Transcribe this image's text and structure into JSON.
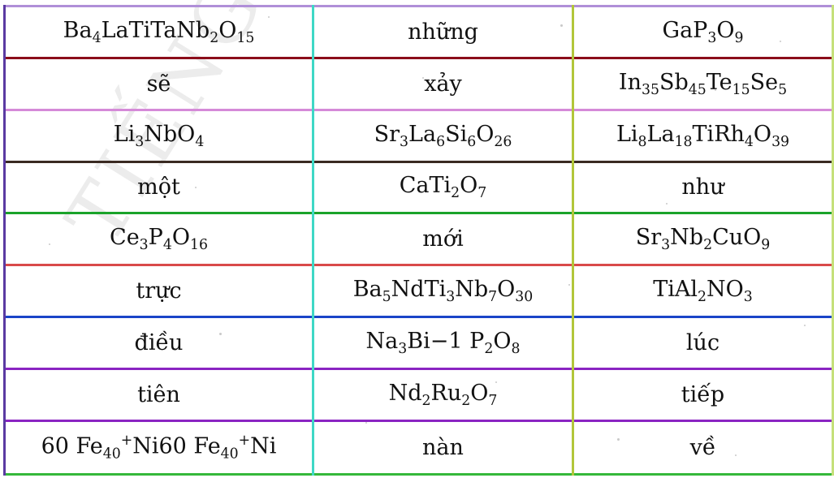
{
  "rows": [
    {
      "cells": [
        {
          "parts": [
            {
              "t": "Ba"
            },
            {
              "sub": "4"
            },
            {
              "t": "LaTiTaNb"
            },
            {
              "sub": "2"
            },
            {
              "t": "O"
            },
            {
              "sub": "15"
            }
          ]
        },
        {
          "parts": [
            {
              "t": "những"
            }
          ]
        },
        {
          "parts": [
            {
              "t": "GaP"
            },
            {
              "sub": "3"
            },
            {
              "t": "O"
            },
            {
              "sub": "9"
            }
          ]
        }
      ]
    },
    {
      "cells": [
        {
          "parts": [
            {
              "t": "sẽ"
            }
          ]
        },
        {
          "parts": [
            {
              "t": "xảy"
            }
          ]
        },
        {
          "parts": [
            {
              "t": "In"
            },
            {
              "sub": "35"
            },
            {
              "t": "Sb"
            },
            {
              "sub": "45"
            },
            {
              "t": "Te"
            },
            {
              "sub": "15"
            },
            {
              "t": "Se"
            },
            {
              "sub": "5"
            }
          ]
        }
      ]
    },
    {
      "cells": [
        {
          "parts": [
            {
              "t": "Li"
            },
            {
              "sub": "3"
            },
            {
              "t": "NbO"
            },
            {
              "sub": "4"
            }
          ]
        },
        {
          "parts": [
            {
              "t": "Sr"
            },
            {
              "sub": "3"
            },
            {
              "t": "La"
            },
            {
              "sub": "6"
            },
            {
              "t": "Si"
            },
            {
              "sub": "6"
            },
            {
              "t": "O"
            },
            {
              "sub": "26"
            }
          ]
        },
        {
          "parts": [
            {
              "t": "Li"
            },
            {
              "sub": "8"
            },
            {
              "t": "La"
            },
            {
              "sub": "18"
            },
            {
              "t": "TiRh"
            },
            {
              "sub": "4"
            },
            {
              "t": "O"
            },
            {
              "sub": "39"
            }
          ]
        }
      ]
    },
    {
      "cells": [
        {
          "parts": [
            {
              "t": "một"
            }
          ]
        },
        {
          "parts": [
            {
              "t": "CaTi"
            },
            {
              "sub": "2"
            },
            {
              "t": "O"
            },
            {
              "sub": "7"
            }
          ]
        },
        {
          "parts": [
            {
              "t": "như"
            }
          ]
        }
      ]
    },
    {
      "cells": [
        {
          "parts": [
            {
              "t": "Ce"
            },
            {
              "sub": "3"
            },
            {
              "t": "P"
            },
            {
              "sub": "4"
            },
            {
              "t": "O"
            },
            {
              "sub": "16"
            }
          ]
        },
        {
          "parts": [
            {
              "t": "mới"
            }
          ]
        },
        {
          "parts": [
            {
              "t": "Sr"
            },
            {
              "sub": "3"
            },
            {
              "t": "Nb"
            },
            {
              "sub": "2"
            },
            {
              "t": "CuO"
            },
            {
              "sub": "9"
            }
          ]
        }
      ]
    },
    {
      "cells": [
        {
          "parts": [
            {
              "t": "trực"
            }
          ]
        },
        {
          "parts": [
            {
              "t": "Ba"
            },
            {
              "sub": "5"
            },
            {
              "t": "NdTi"
            },
            {
              "sub": "3"
            },
            {
              "t": "Nb"
            },
            {
              "sub": "7"
            },
            {
              "t": "O"
            },
            {
              "sub": "30"
            }
          ]
        },
        {
          "parts": [
            {
              "t": "TiAl"
            },
            {
              "sub": "2"
            },
            {
              "t": "NO"
            },
            {
              "sub": "3"
            }
          ]
        }
      ]
    },
    {
      "cells": [
        {
          "parts": [
            {
              "t": "điều"
            }
          ]
        },
        {
          "parts": [
            {
              "t": "Na"
            },
            {
              "sub": "3"
            },
            {
              "t": "Bi−1 P"
            },
            {
              "sub": "2"
            },
            {
              "t": "O"
            },
            {
              "sub": "8"
            }
          ]
        },
        {
          "parts": [
            {
              "t": "lúc"
            }
          ]
        }
      ]
    },
    {
      "cells": [
        {
          "parts": [
            {
              "t": "tiên"
            }
          ]
        },
        {
          "parts": [
            {
              "t": "Nd"
            },
            {
              "sub": "2"
            },
            {
              "t": "Ru"
            },
            {
              "sub": "2"
            },
            {
              "t": "O"
            },
            {
              "sub": "7"
            }
          ]
        },
        {
          "parts": [
            {
              "t": "tiếp"
            }
          ]
        }
      ]
    },
    {
      "cells": [
        {
          "parts": [
            {
              "t": "60 Fe"
            },
            {
              "sub": "40"
            },
            {
              "sup": "+"
            },
            {
              "t": "Ni60 Fe"
            },
            {
              "sub": "40"
            },
            {
              "sup": "+"
            },
            {
              "t": "Ni"
            }
          ]
        },
        {
          "parts": [
            {
              "t": "nàn"
            }
          ]
        },
        {
          "parts": [
            {
              "t": "về"
            }
          ]
        }
      ]
    }
  ],
  "colors": {
    "top_border": "#b08fd8",
    "row_borders": [
      "#8b0d1a",
      "#d58ad8",
      "#3a2a22",
      "#1aa32a",
      "#d94a4a",
      "#1a45c8",
      "#8a24c2",
      "#8a24c2",
      "#35b83a"
    ]
  }
}
